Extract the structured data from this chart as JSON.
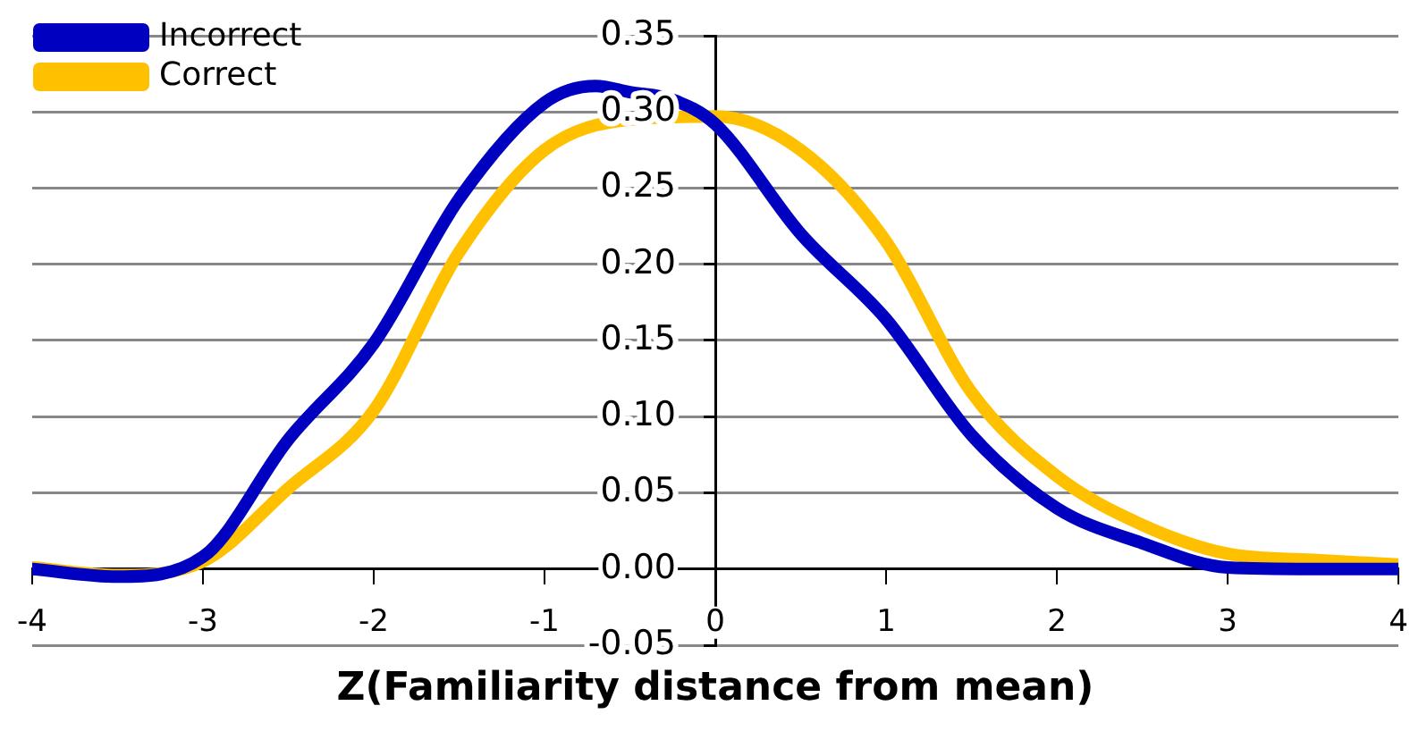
{
  "chart_data": {
    "type": "line",
    "xlabel": "Z(Familiarity distance from mean)",
    "xlim": [
      -4,
      4
    ],
    "xticks": [
      -4,
      -3,
      -2,
      -1,
      0,
      1,
      2,
      3,
      4
    ],
    "ylim": [
      -0.05,
      0.35
    ],
    "yticks": [
      -0.05,
      {
        "value": 0,
        "label": "0.00"
      },
      0.05,
      {
        "value": 0.1,
        "label": "0.10"
      },
      0.15,
      {
        "value": 0.2,
        "label": "0.20"
      },
      0.25,
      {
        "value": 0.3,
        "label": "0.30"
      },
      0.35
    ],
    "grid": "y",
    "legend": "top left",
    "marker": "none",
    "line_style": "solid",
    "series": [
      {
        "name": "Incorrect",
        "color": "#0000c0",
        "x": [
          -4,
          -3.5,
          -3,
          -2.5,
          -2,
          -1.5,
          -1,
          -0.7,
          -0.5,
          -0.25,
          0,
          0.5,
          1,
          1.5,
          2,
          2.5,
          3,
          3.5,
          4
        ],
        "values": [
          0,
          -0.005,
          0.008,
          0.085,
          0.148,
          0.243,
          0.306,
          0.317,
          0.313,
          0.308,
          0.292,
          0.22,
          0.164,
          0.088,
          0.04,
          0.017,
          0.001,
          0,
          0
        ]
      },
      {
        "name": "Correct",
        "color": "#ffc000",
        "x": [
          -4,
          -3.5,
          -3,
          -2.5,
          -2,
          -1.5,
          -1,
          -0.5,
          0,
          0.5,
          1,
          1.5,
          2,
          2.5,
          3,
          3.5,
          4
        ],
        "values": [
          0.001,
          -0.004,
          0.005,
          0.053,
          0.104,
          0.208,
          0.275,
          0.295,
          0.297,
          0.275,
          0.215,
          0.116,
          0.061,
          0.029,
          0.01,
          0.006,
          0.003
        ]
      }
    ]
  }
}
